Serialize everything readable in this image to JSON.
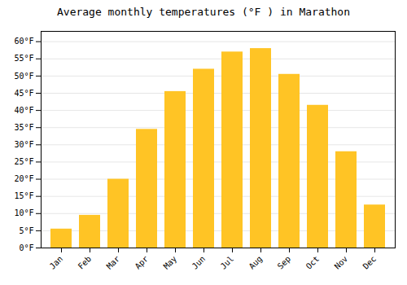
{
  "chart_data": {
    "type": "bar",
    "title": "Average monthly temperatures (°F ) in Marathon",
    "categories": [
      "Jan",
      "Feb",
      "Mar",
      "Apr",
      "May",
      "Jun",
      "Jul",
      "Aug",
      "Sep",
      "Oct",
      "Nov",
      "Dec"
    ],
    "values": [
      5.5,
      9.5,
      20.0,
      34.5,
      45.5,
      52.0,
      57.0,
      58.0,
      50.5,
      41.5,
      28.0,
      12.5
    ],
    "color": "#FFC425",
    "ylim": [
      0,
      63
    ],
    "yticks": [
      {
        "value": 0,
        "label": "0°F"
      },
      {
        "value": 5,
        "label": "5°F"
      },
      {
        "value": 10,
        "label": "10°F"
      },
      {
        "value": 15,
        "label": "15°F"
      },
      {
        "value": 20,
        "label": "20°F"
      },
      {
        "value": 25,
        "label": "25°F"
      },
      {
        "value": 30,
        "label": "30°F"
      },
      {
        "value": 35,
        "label": "35°F"
      },
      {
        "value": 40,
        "label": "40°F"
      },
      {
        "value": 45,
        "label": "45°F"
      },
      {
        "value": 50,
        "label": "50°F"
      },
      {
        "value": 55,
        "label": "55°F"
      },
      {
        "value": 60,
        "label": "60°F"
      }
    ],
    "grid": true
  }
}
